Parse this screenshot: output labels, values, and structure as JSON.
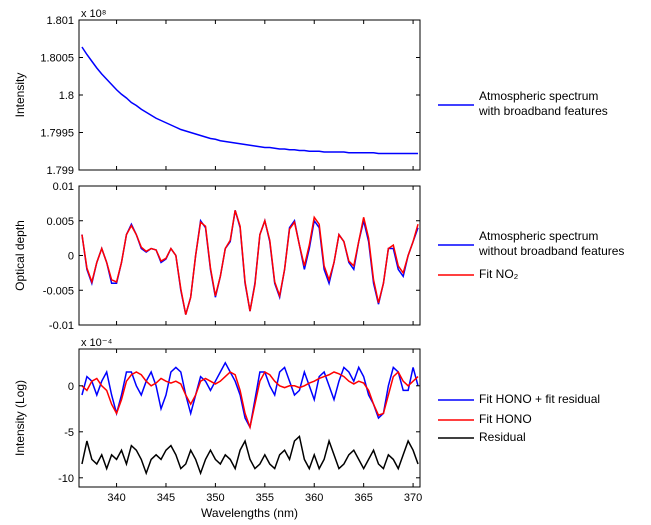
{
  "chart_data": [
    {
      "type": "line",
      "ylabel": "Intensity",
      "y_exponent_label": "x 10⁸",
      "show_xtick_labels": false,
      "legend": "right",
      "x": [
        336.5,
        337,
        337.5,
        338,
        338.5,
        339,
        339.5,
        340,
        340.5,
        341,
        341.5,
        342,
        342.5,
        343,
        343.5,
        344,
        344.5,
        345,
        345.5,
        346,
        346.5,
        347,
        347.5,
        348,
        348.5,
        349,
        349.5,
        350,
        350.5,
        351,
        351.5,
        352,
        352.5,
        353,
        353.5,
        354,
        354.5,
        355,
        355.5,
        356,
        356.5,
        357,
        357.5,
        358,
        358.5,
        359,
        359.5,
        360,
        360.5,
        361,
        361.5,
        362,
        362.5,
        363,
        363.5,
        364,
        364.5,
        365,
        365.5,
        366,
        366.5,
        367,
        367.5,
        368,
        368.5,
        369,
        369.5,
        370,
        370.5
      ],
      "xlim": [
        336.2,
        370.7
      ],
      "xticks": [
        340,
        345,
        350,
        355,
        360,
        365,
        370
      ],
      "ylim": [
        1.799,
        1.801
      ],
      "yticks": [
        1.799,
        1.7995,
        1.8,
        1.8005,
        1.801
      ],
      "series": [
        {
          "name": "Atmospheric spectrum\nwith broadband features",
          "color": "#0000ff",
          "values": [
            1.80064,
            1.80054,
            1.80045,
            1.80036,
            1.80028,
            1.80021,
            1.80014,
            1.80007,
            1.80001,
            1.79996,
            1.7999,
            1.79986,
            1.79981,
            1.79977,
            1.79973,
            1.79969,
            1.79966,
            1.79963,
            1.7996,
            1.79957,
            1.79954,
            1.79952,
            1.7995,
            1.79948,
            1.79946,
            1.79944,
            1.79942,
            1.79941,
            1.79939,
            1.79938,
            1.79937,
            1.79936,
            1.79935,
            1.79934,
            1.79933,
            1.79932,
            1.79931,
            1.7993,
            1.7993,
            1.79929,
            1.79928,
            1.79928,
            1.79927,
            1.79927,
            1.79926,
            1.79926,
            1.79925,
            1.79925,
            1.79925,
            1.79924,
            1.79924,
            1.79924,
            1.79924,
            1.79924,
            1.79923,
            1.79923,
            1.79923,
            1.79923,
            1.79923,
            1.79923,
            1.79922,
            1.79922,
            1.79922,
            1.79922,
            1.79922,
            1.79922,
            1.79922,
            1.79922,
            1.79922
          ]
        }
      ]
    },
    {
      "type": "line",
      "ylabel": "Optical depth",
      "show_xtick_labels": false,
      "legend": "right",
      "x": [
        336.5,
        337,
        337.5,
        338,
        338.5,
        339,
        339.5,
        340,
        340.5,
        341,
        341.5,
        342,
        342.5,
        343,
        343.5,
        344,
        344.5,
        345,
        345.5,
        346,
        346.5,
        347,
        347.5,
        348,
        348.5,
        349,
        349.5,
        350,
        350.5,
        351,
        351.5,
        352,
        352.5,
        353,
        353.5,
        354,
        354.5,
        355,
        355.5,
        356,
        356.5,
        357,
        357.5,
        358,
        358.5,
        359,
        359.5,
        360,
        360.5,
        361,
        361.5,
        362,
        362.5,
        363,
        363.5,
        364,
        364.5,
        365,
        365.5,
        366,
        366.5,
        367,
        367.5,
        368,
        368.5,
        369,
        369.5,
        370,
        370.5
      ],
      "xlim": [
        336.2,
        370.7
      ],
      "xticks": [
        340,
        345,
        350,
        355,
        360,
        365,
        370
      ],
      "ylim": [
        -0.01,
        0.01
      ],
      "yticks": [
        -0.01,
        -0.005,
        0,
        0.005,
        0.01
      ],
      "series": [
        {
          "name": "Atmospheric spectrum\nwithout broadband features",
          "color": "#0000ff",
          "values": [
            0.003,
            -0.002,
            -0.004,
            -0.001,
            0.001,
            -0.001,
            -0.004,
            -0.004,
            -0.001,
            0.003,
            0.0045,
            0.003,
            0.001,
            0.0005,
            0.001,
            0.0008,
            -0.001,
            -0.0005,
            0.001,
            0,
            -0.005,
            -0.0085,
            -0.006,
            0,
            0.005,
            0.004,
            -0.002,
            -0.006,
            -0.003,
            0.001,
            0.002,
            0.0065,
            0.004,
            -0.004,
            -0.008,
            -0.004,
            0.003,
            0.005,
            0.002,
            -0.004,
            -0.006,
            -0.002,
            0.004,
            0.005,
            0.0015,
            -0.002,
            0.001,
            0.005,
            0.004,
            -0.002,
            -0.004,
            -0.001,
            0.003,
            0.002,
            -0.001,
            -0.002,
            0.002,
            0.005,
            0.002,
            -0.004,
            -0.007,
            -0.004,
            0.001,
            0.001,
            -0.002,
            -0.003,
            0,
            0.002,
            0.004
          ]
        },
        {
          "name": "Fit NO₂",
          "color": "#ff0000",
          "values": [
            0.003,
            -0.0018,
            -0.0038,
            -0.001,
            0.001,
            -0.001,
            -0.0035,
            -0.0038,
            -0.001,
            0.003,
            0.0043,
            0.003,
            0.0012,
            0.0006,
            0.001,
            0.0008,
            -0.0008,
            -0.0004,
            0.001,
            0,
            -0.0048,
            -0.0085,
            -0.006,
            0,
            0.0048,
            0.0042,
            -0.0018,
            -0.0058,
            -0.003,
            0.001,
            0.0022,
            0.0065,
            0.0042,
            -0.0038,
            -0.008,
            -0.0042,
            0.003,
            0.005,
            0.0022,
            -0.0038,
            -0.0058,
            -0.002,
            0.0038,
            0.0048,
            0.0015,
            -0.0015,
            0.0015,
            0.0055,
            0.0045,
            -0.0015,
            -0.0035,
            -0.001,
            0.003,
            0.002,
            -0.0008,
            -0.0015,
            0.002,
            0.0055,
            0.0025,
            -0.0035,
            -0.0068,
            -0.004,
            0.001,
            0.0015,
            -0.0015,
            -0.0025,
            0,
            0.002,
            0.0045
          ]
        }
      ]
    },
    {
      "type": "line",
      "ylabel": "Intensity (Log)",
      "y_exponent_label": "x 10⁻⁴",
      "xlabel": "Wavelengths (nm)",
      "show_xtick_labels": true,
      "legend": "right",
      "x": [
        336.5,
        337,
        337.5,
        338,
        338.5,
        339,
        339.5,
        340,
        340.5,
        341,
        341.5,
        342,
        342.5,
        343,
        343.5,
        344,
        344.5,
        345,
        345.5,
        346,
        346.5,
        347,
        347.5,
        348,
        348.5,
        349,
        349.5,
        350,
        350.5,
        351,
        351.5,
        352,
        352.5,
        353,
        353.5,
        354,
        354.5,
        355,
        355.5,
        356,
        356.5,
        357,
        357.5,
        358,
        358.5,
        359,
        359.5,
        360,
        360.5,
        361,
        361.5,
        362,
        362.5,
        363,
        363.5,
        364,
        364.5,
        365,
        365.5,
        366,
        366.5,
        367,
        367.5,
        368,
        368.5,
        369,
        369.5,
        370,
        370.5
      ],
      "xlim": [
        336.2,
        370.7
      ],
      "xticks": [
        340,
        345,
        350,
        355,
        360,
        365,
        370
      ],
      "ylim": [
        -11,
        4
      ],
      "yticks": [
        -10,
        -5,
        0
      ],
      "series": [
        {
          "name": "Fit HONO + fit residual",
          "color": "#0000ff",
          "values": [
            -1,
            1,
            0.5,
            -1,
            0.5,
            1.5,
            -1,
            -3,
            -1,
            1.5,
            1.5,
            0,
            -1,
            0.5,
            1.5,
            0,
            -2.5,
            -1,
            1.5,
            2,
            1.5,
            -1,
            -3,
            -1,
            1,
            0.5,
            -0.5,
            0.5,
            1.5,
            2.5,
            1.5,
            0.5,
            -1,
            -3.5,
            -4.5,
            -1.5,
            1.5,
            1.5,
            0,
            -1,
            1.5,
            2,
            0.5,
            -1,
            -0.5,
            1.5,
            0,
            -1.5,
            1,
            1.5,
            0,
            -1.5,
            0.5,
            2,
            1.5,
            0.5,
            2,
            1,
            -1,
            -2,
            -3.5,
            -3,
            0,
            2,
            1.5,
            -0.5,
            -0.5,
            2,
            0
          ]
        },
        {
          "name": "Fit HONO",
          "color": "#ff0000",
          "values": [
            0,
            -0.5,
            0.5,
            0.8,
            0,
            -0.5,
            -2,
            -3,
            -1.5,
            0.5,
            1.2,
            1.5,
            1.2,
            0.5,
            0,
            0.3,
            0.8,
            0.5,
            0.3,
            0.5,
            0.2,
            -1,
            -2,
            -1,
            0.5,
            0.8,
            0.5,
            0.2,
            0.5,
            1,
            1.5,
            1.2,
            -0.5,
            -3,
            -4.5,
            -2,
            0.5,
            1.5,
            1.2,
            0.5,
            0,
            -0.2,
            0,
            0,
            -0.2,
            0,
            0.3,
            0.5,
            0.8,
            1,
            1.2,
            1.5,
            1.3,
            1,
            0.5,
            0.2,
            0.5,
            0.3,
            -0.5,
            -2,
            -3.2,
            -3,
            -1,
            1,
            1.5,
            0.5,
            0,
            0.5,
            1
          ]
        },
        {
          "name": "Residual",
          "color": "#000000",
          "values": [
            -8.5,
            -6,
            -8,
            -8.5,
            -7.5,
            -9,
            -7.5,
            -8,
            -7,
            -8.5,
            -6.5,
            -7,
            -8,
            -9.5,
            -8,
            -7.5,
            -8,
            -7,
            -6.5,
            -7.5,
            -9,
            -8.5,
            -7,
            -8,
            -9.5,
            -8,
            -7,
            -8,
            -8.5,
            -7.5,
            -8,
            -9,
            -7,
            -6,
            -8,
            -9,
            -8.5,
            -7.5,
            -8.5,
            -9,
            -7.5,
            -7,
            -8,
            -6,
            -5.5,
            -8,
            -9,
            -7.5,
            -9,
            -8,
            -6,
            -7.5,
            -9,
            -8.5,
            -7.5,
            -7,
            -8,
            -9,
            -8,
            -7,
            -8.5,
            -9,
            -7.5,
            -8,
            -9,
            -7.5,
            -6,
            -7,
            -8.5
          ]
        }
      ]
    }
  ]
}
